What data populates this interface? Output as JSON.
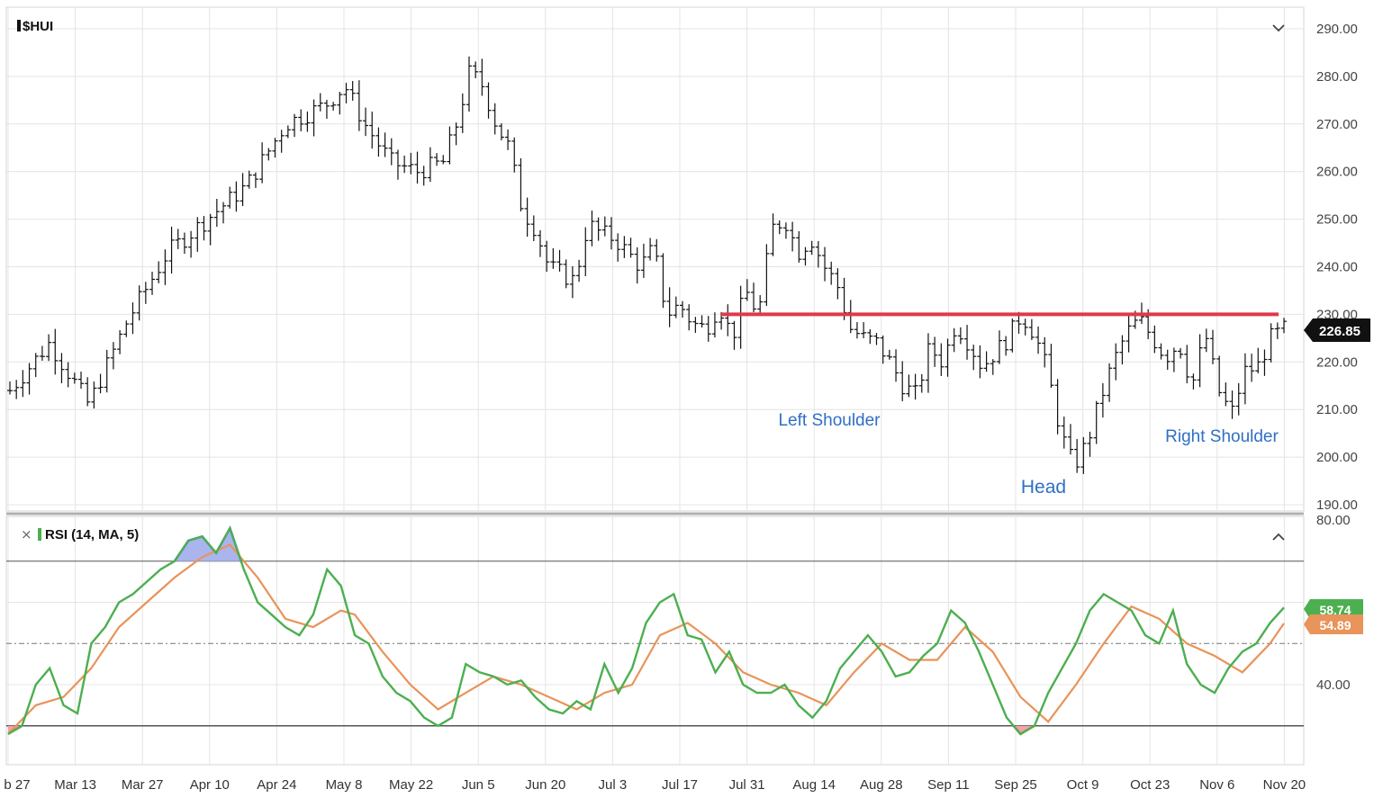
{
  "chart_data": [
    {
      "type": "ohlc",
      "title": "$HUI",
      "ylim": [
        190,
        292
      ],
      "y_ticks": [
        "290.00",
        "280.00",
        "270.00",
        "260.00",
        "250.00",
        "240.00",
        "230.00",
        "220.00",
        "210.00",
        "200.00",
        "190.00"
      ],
      "x_ticks": [
        "b 27",
        "Mar 13",
        "Mar 27",
        "Apr 10",
        "Apr 24",
        "May 8",
        "May 22",
        "Jun 5",
        "Jun 20",
        "Jul 3",
        "Jul 17",
        "Jul 31",
        "Aug 14",
        "Aug 28",
        "Sep 11",
        "Sep 25",
        "Oct 9",
        "Oct 23",
        "Nov 6",
        "Nov 20"
      ],
      "last_price": "226.85",
      "neckline": {
        "value": 230,
        "color": "#e0384a"
      },
      "annotations": [
        {
          "text": "Left Shoulder"
        },
        {
          "text": "Head"
        },
        {
          "text": "Right Shoulder"
        }
      ],
      "close_path": [
        [
          0,
          214
        ],
        [
          3,
          224
        ],
        [
          6,
          211
        ],
        [
          9,
          229
        ],
        [
          12,
          243
        ],
        [
          15,
          250
        ],
        [
          18,
          257
        ],
        [
          21,
          270
        ],
        [
          24,
          274
        ],
        [
          25.5,
          278
        ],
        [
          27,
          270
        ],
        [
          29,
          262
        ],
        [
          31,
          260
        ],
        [
          33,
          262
        ],
        [
          34,
          270
        ],
        [
          35,
          281
        ],
        [
          36,
          278
        ],
        [
          37,
          270
        ],
        [
          38,
          265
        ],
        [
          39,
          252
        ],
        [
          40,
          248
        ],
        [
          41,
          240
        ],
        [
          43,
          237
        ],
        [
          44,
          249
        ],
        [
          45,
          247
        ],
        [
          46,
          246
        ],
        [
          47,
          243
        ],
        [
          48,
          240
        ],
        [
          49,
          244
        ],
        [
          50,
          230
        ],
        [
          51,
          232
        ],
        [
          52,
          228
        ],
        [
          53,
          227
        ],
        [
          54,
          232
        ],
        [
          55,
          225
        ],
        [
          56,
          235
        ],
        [
          57,
          230
        ],
        [
          58,
          248
        ],
        [
          59,
          250
        ],
        [
          60,
          243
        ],
        [
          61,
          246
        ],
        [
          62,
          240
        ],
        [
          63,
          236
        ],
        [
          64,
          227
        ],
        [
          65,
          225
        ],
        [
          66,
          224
        ],
        [
          67,
          220
        ],
        [
          68,
          215
        ],
        [
          69,
          213
        ],
        [
          70,
          223
        ],
        [
          71,
          220
        ],
        [
          72,
          228
        ],
        [
          73,
          224
        ],
        [
          74,
          219
        ],
        [
          75,
          222
        ],
        [
          76,
          225
        ],
        [
          77,
          230
        ],
        [
          78,
          226
        ],
        [
          79,
          218
        ],
        [
          80,
          205
        ],
        [
          81,
          198
        ],
        [
          82,
          203
        ],
        [
          83,
          212
        ],
        [
          84,
          220
        ],
        [
          85,
          226
        ],
        [
          86,
          229
        ],
        [
          87,
          225
        ],
        [
          88,
          221
        ],
        [
          89,
          224
        ],
        [
          90,
          215
        ],
        [
          91,
          226
        ],
        [
          92,
          214
        ],
        [
          93,
          209
        ],
        [
          94,
          218
        ],
        [
          95,
          219
        ],
        [
          96,
          225
        ],
        [
          97,
          226.85
        ]
      ]
    },
    {
      "type": "line",
      "title": "RSI (14, MA, 5)",
      "ylim": [
        20,
        80
      ],
      "y_ticks": [
        "80.00",
        "40.00"
      ],
      "overbought": 70,
      "oversold": 30,
      "midline": 50,
      "series": [
        {
          "name": "RSI",
          "color": "#4caf50",
          "last": "58.74",
          "path": [
            [
              0,
              28
            ],
            [
              1,
              30
            ],
            [
              2,
              40
            ],
            [
              3,
              44
            ],
            [
              4,
              35
            ],
            [
              5,
              33
            ],
            [
              6,
              50
            ],
            [
              7,
              54
            ],
            [
              8,
              60
            ],
            [
              9,
              62
            ],
            [
              10,
              65
            ],
            [
              11,
              68
            ],
            [
              12,
              70
            ],
            [
              13,
              75
            ],
            [
              14,
              76
            ],
            [
              15,
              72
            ],
            [
              16,
              78
            ],
            [
              17,
              68
            ],
            [
              18,
              60
            ],
            [
              19,
              57
            ],
            [
              20,
              54
            ],
            [
              21,
              52
            ],
            [
              22,
              57
            ],
            [
              23,
              68
            ],
            [
              24,
              64
            ],
            [
              25,
              52
            ],
            [
              26,
              50
            ],
            [
              27,
              42
            ],
            [
              28,
              38
            ],
            [
              29,
              36
            ],
            [
              30,
              32
            ],
            [
              31,
              30
            ],
            [
              32,
              32
            ],
            [
              33,
              45
            ],
            [
              34,
              43
            ],
            [
              35,
              42
            ],
            [
              36,
              40
            ],
            [
              37,
              41
            ],
            [
              38,
              37
            ],
            [
              39,
              34
            ],
            [
              40,
              33
            ],
            [
              41,
              36
            ],
            [
              42,
              34
            ],
            [
              43,
              45
            ],
            [
              44,
              38
            ],
            [
              45,
              44
            ],
            [
              46,
              55
            ],
            [
              47,
              60
            ],
            [
              48,
              62
            ],
            [
              49,
              52
            ],
            [
              50,
              51
            ],
            [
              51,
              43
            ],
            [
              52,
              48
            ],
            [
              53,
              40
            ],
            [
              54,
              38
            ],
            [
              55,
              38
            ],
            [
              56,
              40
            ],
            [
              57,
              35
            ],
            [
              58,
              32
            ],
            [
              59,
              36
            ],
            [
              60,
              44
            ],
            [
              61,
              48
            ],
            [
              62,
              52
            ],
            [
              63,
              48
            ],
            [
              64,
              42
            ],
            [
              65,
              43
            ],
            [
              66,
              47
            ],
            [
              67,
              50
            ],
            [
              68,
              58
            ],
            [
              69,
              55
            ],
            [
              70,
              48
            ],
            [
              71,
              40
            ],
            [
              72,
              32
            ],
            [
              73,
              28
            ],
            [
              74,
              30
            ],
            [
              75,
              38
            ],
            [
              76,
              44
            ],
            [
              77,
              50
            ],
            [
              78,
              58
            ],
            [
              79,
              62
            ],
            [
              80,
              60
            ],
            [
              81,
              58
            ],
            [
              82,
              52
            ],
            [
              83,
              50
            ],
            [
              84,
              58
            ],
            [
              85,
              45
            ],
            [
              86,
              40
            ],
            [
              87,
              38
            ],
            [
              88,
              44
            ],
            [
              89,
              48
            ],
            [
              90,
              50
            ],
            [
              91,
              55
            ],
            [
              92,
              58.74
            ]
          ]
        },
        {
          "name": "MA",
          "color": "#e8945a",
          "last": "54.89",
          "path": [
            [
              0,
              28
            ],
            [
              2,
              35
            ],
            [
              4,
              37
            ],
            [
              6,
              44
            ],
            [
              8,
              54
            ],
            [
              10,
              60
            ],
            [
              12,
              66
            ],
            [
              14,
              71
            ],
            [
              16,
              74
            ],
            [
              18,
              66
            ],
            [
              20,
              56
            ],
            [
              22,
              54
            ],
            [
              24,
              58
            ],
            [
              25,
              57
            ],
            [
              27,
              48
            ],
            [
              29,
              40
            ],
            [
              31,
              34
            ],
            [
              33,
              38
            ],
            [
              35,
              42
            ],
            [
              37,
              40
            ],
            [
              39,
              37
            ],
            [
              41,
              34
            ],
            [
              43,
              38
            ],
            [
              45,
              40
            ],
            [
              47,
              52
            ],
            [
              49,
              55
            ],
            [
              51,
              50
            ],
            [
              53,
              43
            ],
            [
              55,
              40
            ],
            [
              57,
              38
            ],
            [
              59,
              35
            ],
            [
              61,
              43
            ],
            [
              63,
              50
            ],
            [
              65,
              46
            ],
            [
              67,
              46
            ],
            [
              69,
              54
            ],
            [
              71,
              48
            ],
            [
              73,
              37
            ],
            [
              75,
              31
            ],
            [
              77,
              40
            ],
            [
              79,
              50
            ],
            [
              81,
              59
            ],
            [
              83,
              56
            ],
            [
              85,
              50
            ],
            [
              87,
              47
            ],
            [
              89,
              43
            ],
            [
              91,
              50
            ],
            [
              92,
              54.89
            ]
          ]
        }
      ]
    }
  ]
}
